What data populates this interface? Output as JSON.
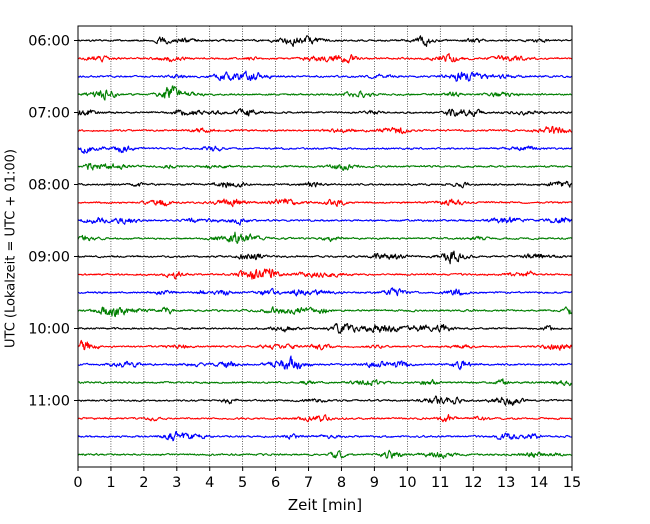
{
  "chart_data": {
    "type": "line",
    "xlabel": "Zeit  [min]",
    "ylabel": "UTC (Lokalzeit = UTC + 01:00)",
    "xlim": [
      0,
      15
    ],
    "x_ticks": [
      0,
      1,
      2,
      3,
      4,
      5,
      6,
      7,
      8,
      9,
      10,
      11,
      12,
      13,
      14,
      15
    ],
    "x_tick_labels": [
      "0",
      "1",
      "2",
      "3",
      "4",
      "5",
      "6",
      "7",
      "8",
      "9",
      "10",
      "11",
      "12",
      "13",
      "14",
      "15"
    ],
    "y_axis": "time of day (UTC), increasing downward",
    "y_start": "06:00",
    "row_interval_minutes": 15,
    "row_count": 24,
    "y_ticks": [
      "06:00",
      "07:00",
      "08:00",
      "09:00",
      "10:00",
      "11:00"
    ],
    "vertical_grid": "dotted, at every minute",
    "trace_color_cycle": [
      "#000000",
      "#ff0000",
      "#0000ff",
      "#007f00"
    ],
    "traces": [
      {
        "start": "06:00",
        "color": "#000000"
      },
      {
        "start": "06:15",
        "color": "#ff0000"
      },
      {
        "start": "06:30",
        "color": "#0000ff"
      },
      {
        "start": "06:45",
        "color": "#007f00"
      },
      {
        "start": "07:00",
        "color": "#000000"
      },
      {
        "start": "07:15",
        "color": "#ff0000"
      },
      {
        "start": "07:30",
        "color": "#0000ff"
      },
      {
        "start": "07:45",
        "color": "#007f00"
      },
      {
        "start": "08:00",
        "color": "#000000"
      },
      {
        "start": "08:15",
        "color": "#ff0000"
      },
      {
        "start": "08:30",
        "color": "#0000ff"
      },
      {
        "start": "08:45",
        "color": "#007f00"
      },
      {
        "start": "09:00",
        "color": "#000000"
      },
      {
        "start": "09:15",
        "color": "#ff0000"
      },
      {
        "start": "09:30",
        "color": "#0000ff"
      },
      {
        "start": "09:45",
        "color": "#007f00"
      },
      {
        "start": "10:00",
        "color": "#000000"
      },
      {
        "start": "10:15",
        "color": "#ff0000"
      },
      {
        "start": "10:30",
        "color": "#0000ff"
      },
      {
        "start": "10:45",
        "color": "#007f00"
      },
      {
        "start": "11:00",
        "color": "#000000"
      },
      {
        "start": "11:15",
        "color": "#ff0000"
      },
      {
        "start": "11:30",
        "color": "#0000ff"
      },
      {
        "start": "11:45",
        "color": "#007f00"
      }
    ]
  }
}
